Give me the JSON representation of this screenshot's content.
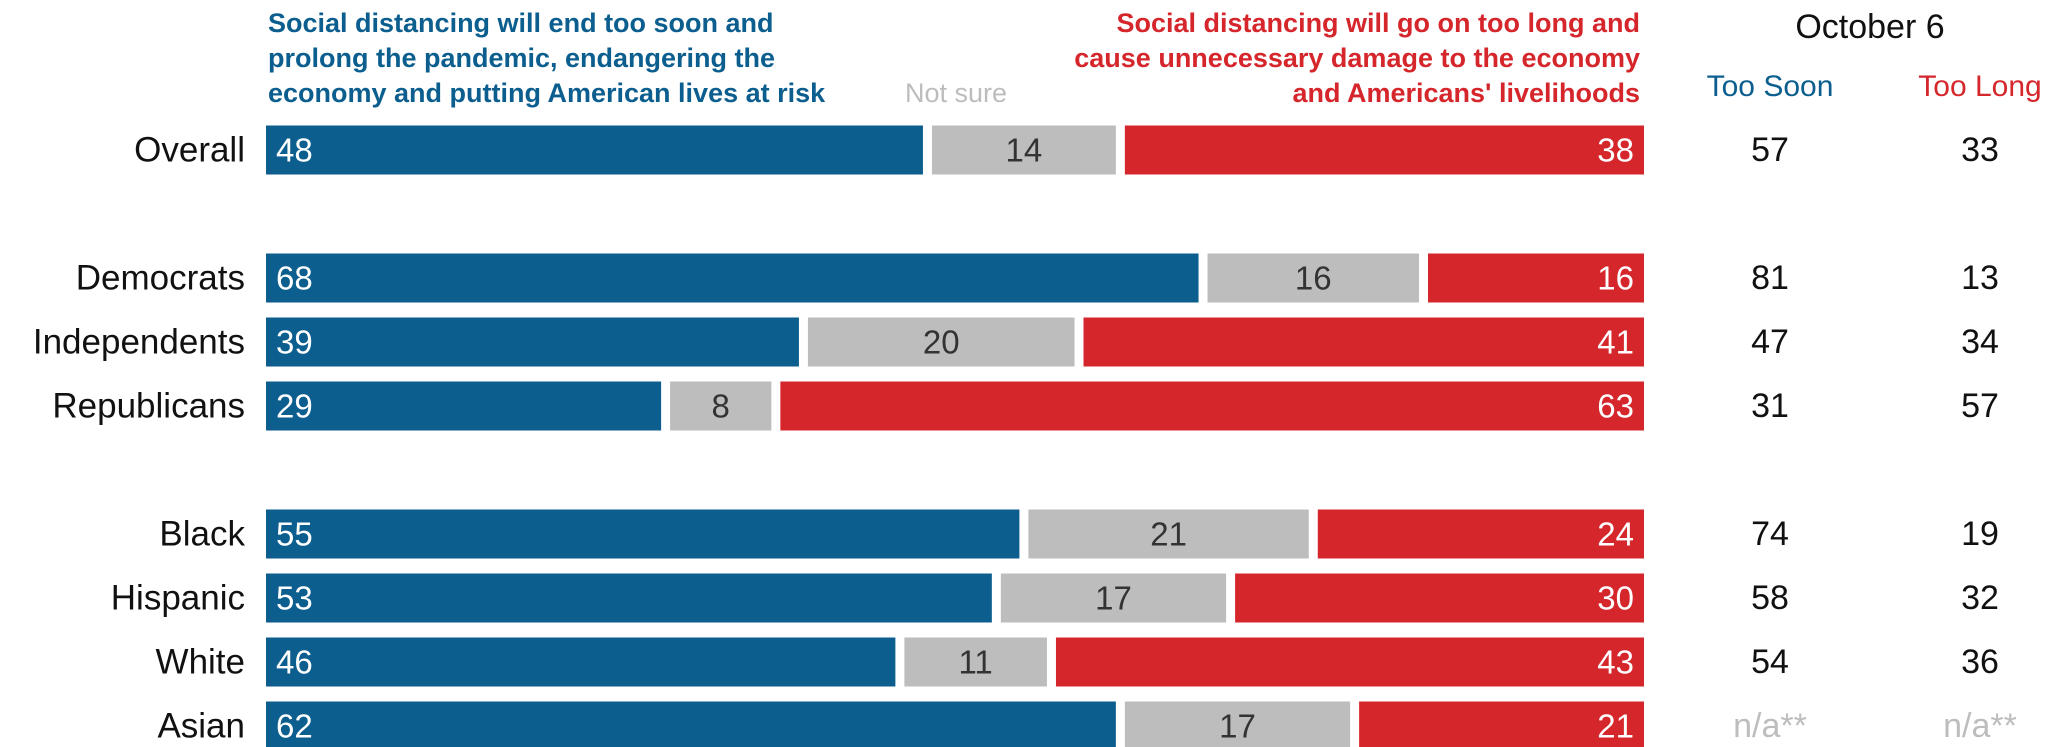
{
  "chart_data": {
    "type": "bar",
    "stacked": true,
    "orientation": "horizontal",
    "xlim": [
      0,
      100
    ],
    "series": [
      {
        "name": "Social distancing will end too soon and prolong the pandemic, endangering the economy and putting American lives at risk",
        "color": "#0b5e8e"
      },
      {
        "name": "Not sure",
        "color": "#bdbdbd"
      },
      {
        "name": "Social distancing will go on too long and cause unnecessary damage to the economy and Americans' livelihoods",
        "color": "#d5262c"
      }
    ],
    "rows": [
      {
        "label": "Overall",
        "values": [
          48,
          14,
          38
        ],
        "oct_soon": "57",
        "oct_long": "33"
      },
      {
        "label": "Democrats",
        "values": [
          68,
          16,
          16
        ],
        "oct_soon": "81",
        "oct_long": "13"
      },
      {
        "label": "Independents",
        "values": [
          39,
          20,
          41
        ],
        "oct_soon": "47",
        "oct_long": "34"
      },
      {
        "label": "Republicans",
        "values": [
          29,
          8,
          63
        ],
        "oct_soon": "31",
        "oct_long": "57"
      },
      {
        "label": "Black",
        "values": [
          55,
          21,
          24
        ],
        "oct_soon": "74",
        "oct_long": "19"
      },
      {
        "label": "Hispanic",
        "values": [
          53,
          17,
          30
        ],
        "oct_soon": "58",
        "oct_long": "32"
      },
      {
        "label": "White",
        "values": [
          46,
          11,
          43
        ],
        "oct_soon": "54",
        "oct_long": "36"
      },
      {
        "label": "Asian",
        "values": [
          62,
          17,
          21
        ],
        "oct_soon": "n/a**",
        "oct_long": "n/a**"
      }
    ],
    "comparison": {
      "title": "October 6",
      "col_soon": "Too Soon",
      "col_long": "Too Long",
      "col_soon_color": "#0b5e8e",
      "col_long_color": "#d5262c",
      "na_color": "#bdbdbd"
    }
  }
}
